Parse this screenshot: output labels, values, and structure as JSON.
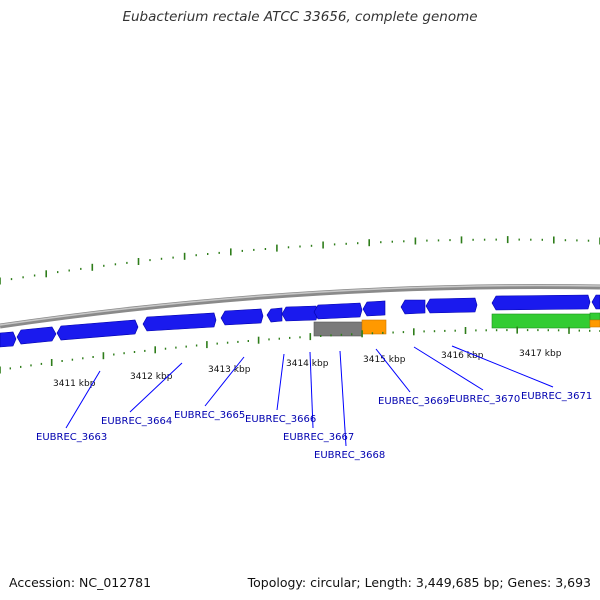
{
  "title": "Eubacterium rectale ATCC 33656, complete genome",
  "footer": {
    "accession": "Accession: NC_012781",
    "summary": "Topology: circular; Length: 3,449,685 bp; Genes: 3,693"
  },
  "colors": {
    "forward_gene": "#1a1aee",
    "reverse_gene": "#1a1aee",
    "rna_gene": "#33cc33",
    "pseudo_gene": "#808080",
    "cds_highlight": "#ff9900",
    "backbone": "#8a8a8a",
    "ticks": "#2e7d1a",
    "label_line": "#0000ff"
  },
  "scale_ticks": [
    {
      "label": "3411 kbp"
    },
    {
      "label": "3412 kbp"
    },
    {
      "label": "3413 kbp"
    },
    {
      "label": "3414 kbp"
    },
    {
      "label": "3415 kbp"
    },
    {
      "label": "3416 kbp"
    },
    {
      "label": "3417 kbp"
    }
  ],
  "gene_labels": [
    {
      "label": "EUBREC_3663"
    },
    {
      "label": "EUBREC_3664"
    },
    {
      "label": "EUBREC_3665"
    },
    {
      "label": "EUBREC_3666"
    },
    {
      "label": "EUBREC_3667"
    },
    {
      "label": "EUBREC_3668"
    },
    {
      "label": "EUBREC_3669"
    },
    {
      "label": "EUBREC_3670"
    },
    {
      "label": "EUBREC_3671"
    }
  ]
}
